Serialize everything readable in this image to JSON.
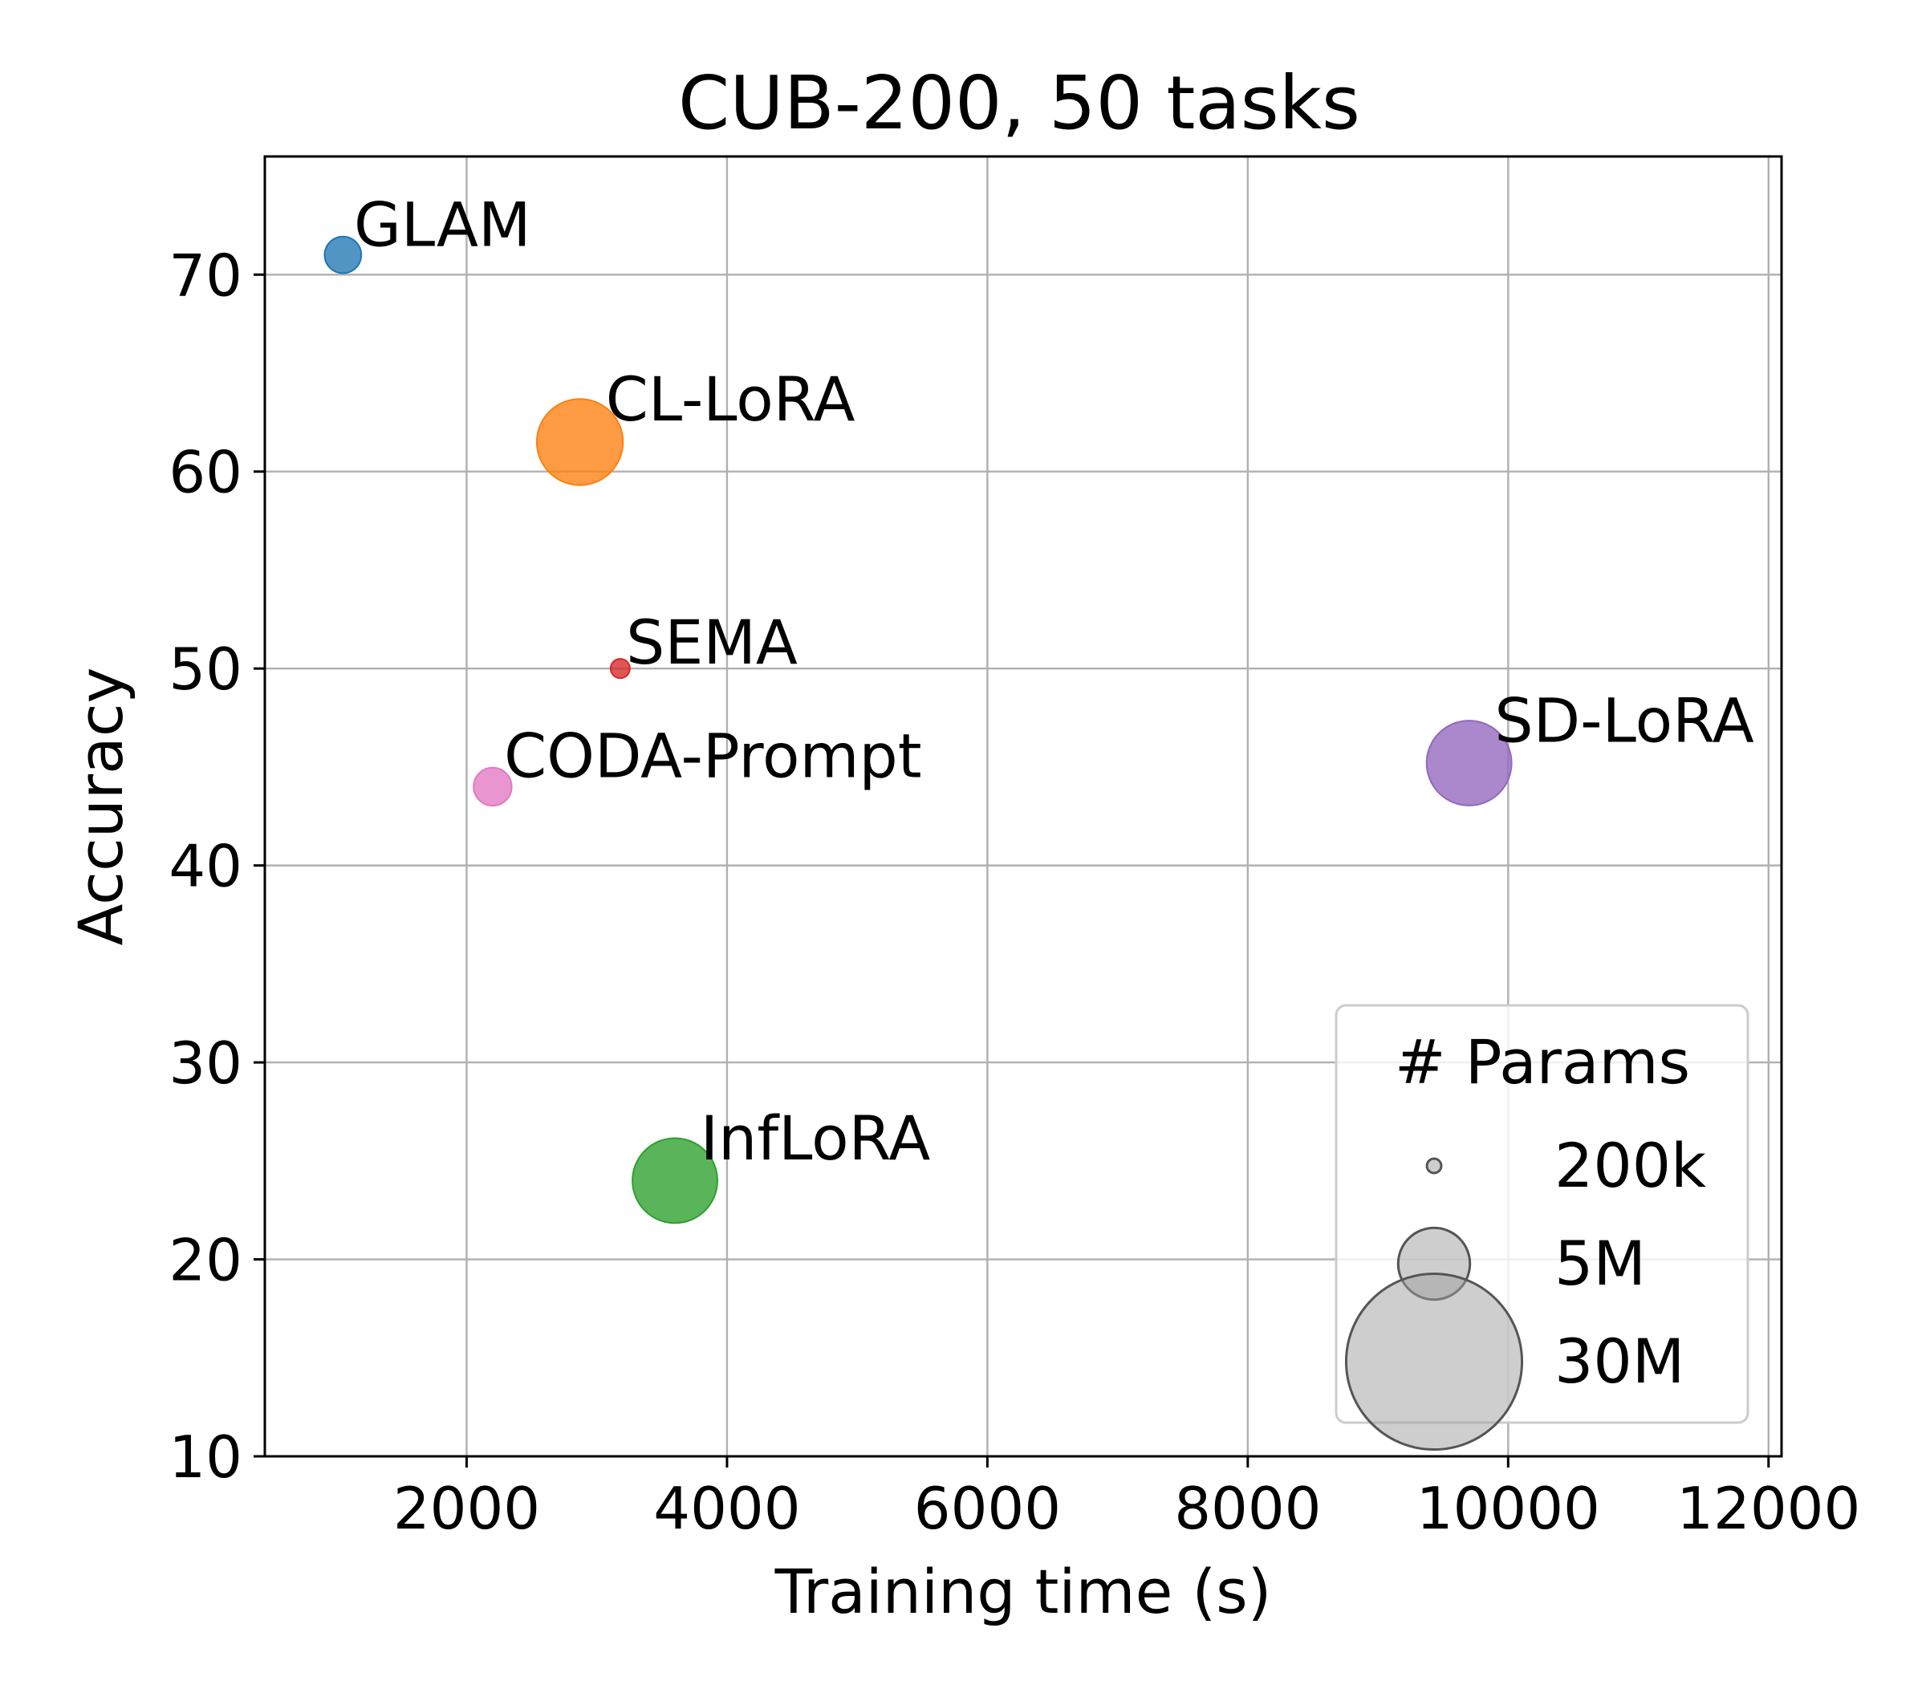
{
  "chart_data": {
    "type": "scatter",
    "title": "CUB-200, 50 tasks",
    "xlabel": "Training time (s)",
    "ylabel": "Accuracy",
    "xlim": [
      450,
      12100
    ],
    "ylim": [
      10,
      76
    ],
    "xticks": [
      2000,
      4000,
      6000,
      8000,
      10000,
      12000
    ],
    "yticks": [
      10,
      20,
      30,
      40,
      50,
      60,
      70
    ],
    "grid": true,
    "size_encoding": "# Params",
    "points": [
      {
        "name": "GLAM",
        "x": 1050,
        "y": 71,
        "params": 1300000,
        "color": "#1f77b4"
      },
      {
        "name": "CL-LoRA",
        "x": 2870,
        "y": 61.5,
        "params": 7200000,
        "color": "#ff7f0e"
      },
      {
        "name": "SEMA",
        "x": 3180,
        "y": 50,
        "params": 360000,
        "color": "#d62728"
      },
      {
        "name": "CODA-Prompt",
        "x": 2200,
        "y": 44,
        "params": 1400000,
        "color": "#e377c2"
      },
      {
        "name": "SD-LoRA",
        "x": 9700,
        "y": 45.2,
        "params": 7000000,
        "color": "#9467bd"
      },
      {
        "name": "InfLoRA",
        "x": 3600,
        "y": 24,
        "params": 7000000,
        "color": "#2ca02c"
      }
    ],
    "legend": {
      "title": "# Params",
      "placement": "lower-right",
      "entries": [
        {
          "label": "200k",
          "params": 200000
        },
        {
          "label": "5M",
          "params": 5000000
        },
        {
          "label": "30M",
          "params": 30000000
        }
      ]
    }
  }
}
